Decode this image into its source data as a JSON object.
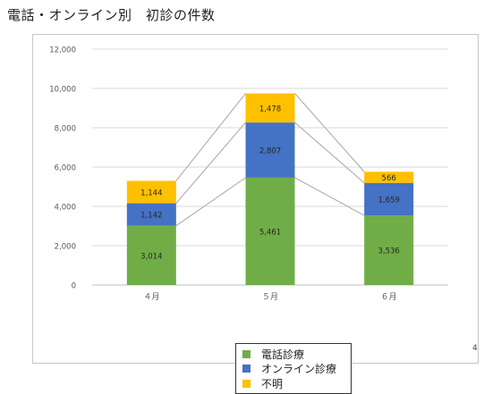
{
  "page": {
    "title": "電話・オンライン別　初診の件数",
    "page_number": "4"
  },
  "colors": {
    "denwa": "#70ad47",
    "online": "#4472c4",
    "fumei": "#ffc000",
    "grid": "#d9d9d9",
    "connector": "#a6a6a6"
  },
  "chart_data": {
    "type": "bar",
    "stacked": true,
    "title": "",
    "xlabel": "",
    "ylabel": "",
    "categories": [
      "４月",
      "５月",
      "６月"
    ],
    "series": [
      {
        "name": "電話診療",
        "color": "#70ad47",
        "values": [
          3014,
          5461,
          3536
        ],
        "labels": [
          "3,014",
          "5,461",
          "3,536"
        ]
      },
      {
        "name": "オンライン診療",
        "color": "#4472c4",
        "values": [
          1142,
          2807,
          1659
        ],
        "labels": [
          "1,142",
          "2,807",
          "1,659"
        ]
      },
      {
        "name": "不明",
        "color": "#ffc000",
        "values": [
          1144,
          1478,
          566
        ],
        "labels": [
          "1,144",
          "1,478",
          "566"
        ]
      }
    ],
    "ylim": [
      0,
      12000
    ],
    "yticks": [
      0,
      2000,
      4000,
      6000,
      8000,
      10000,
      12000
    ],
    "ytick_labels": [
      "0",
      "2,000",
      "4,000",
      "6,000",
      "8,000",
      "10,000",
      "12,000"
    ],
    "grid": true,
    "series_lines": true,
    "legend_position": "bottom"
  }
}
